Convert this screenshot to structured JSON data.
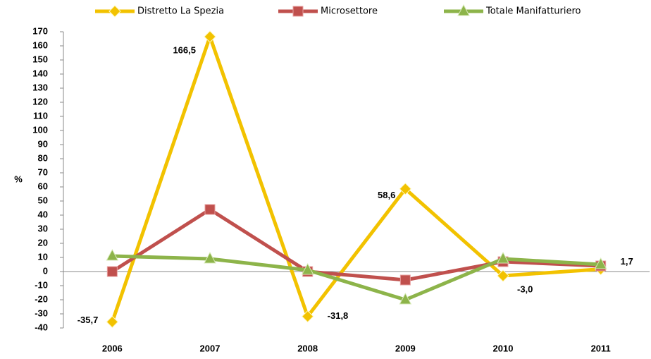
{
  "chart_data": {
    "type": "line",
    "y_label": "%",
    "categories": [
      "2006",
      "2007",
      "2008",
      "2009",
      "2010",
      "2011"
    ],
    "series": [
      {
        "name": "Distretto La Spezia",
        "color": "#f2c200",
        "marker": "diamond",
        "values": [
          -35.7,
          166.5,
          -31.8,
          58.6,
          -3.0,
          1.7
        ],
        "value_labels": [
          "-35,7",
          "166,5",
          "-31,8",
          "58,6",
          "-3,0",
          "1,7"
        ]
      },
      {
        "name": "Microsettore",
        "color": "#c0504d",
        "marker": "square",
        "values": [
          0,
          44,
          0,
          -6,
          7,
          4
        ]
      },
      {
        "name": "Totale Manifatturiero",
        "color": "#8db44a",
        "marker": "triangle",
        "values": [
          11,
          9,
          1,
          -20,
          9,
          5
        ]
      }
    ],
    "ylim": [
      -40,
      170
    ],
    "yticks": [
      -40,
      -30,
      -20,
      -10,
      0,
      10,
      20,
      30,
      40,
      50,
      60,
      70,
      80,
      90,
      100,
      110,
      120,
      130,
      140,
      150,
      160,
      170
    ],
    "grid": false
  }
}
